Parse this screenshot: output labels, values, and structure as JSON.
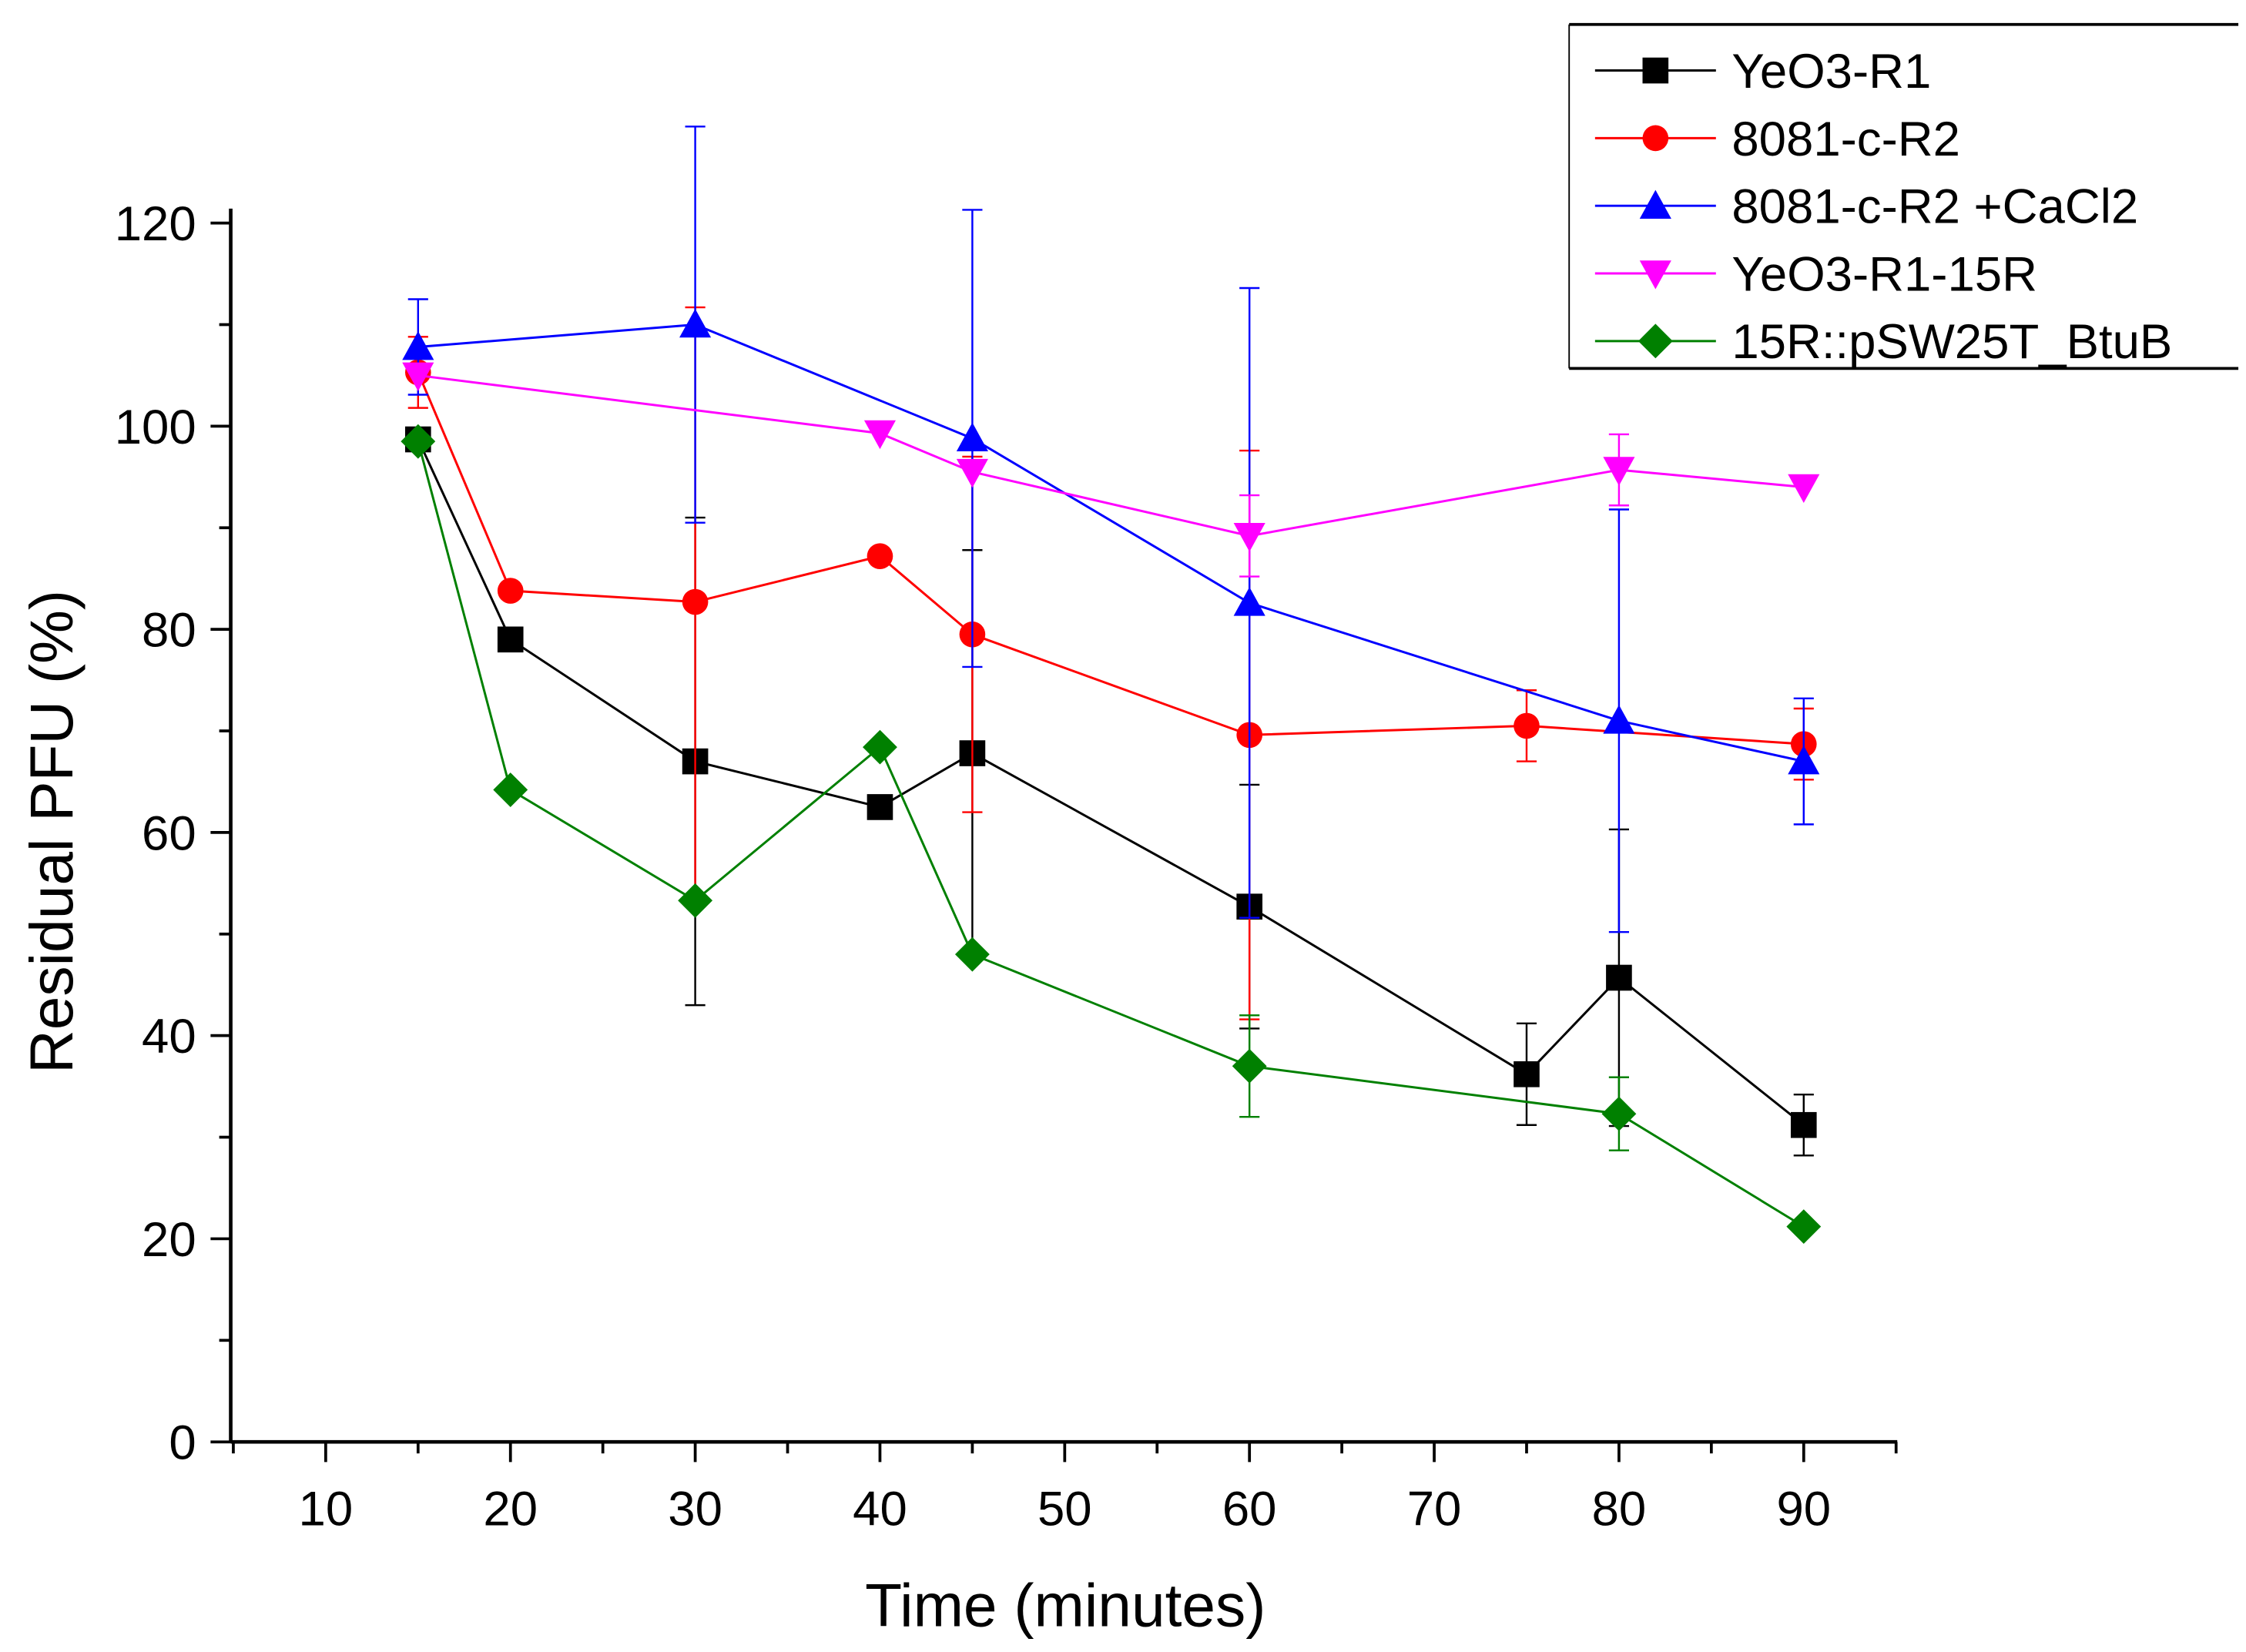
{
  "chart_data": {
    "type": "line",
    "title": "",
    "xlabel": "Time (minutes)",
    "ylabel": "Residual PFU (%)",
    "xlim": [
      5,
      95
    ],
    "ylim": [
      0,
      120
    ],
    "xticks": [
      10,
      20,
      30,
      40,
      50,
      60,
      70,
      80,
      90
    ],
    "yticks": [
      0,
      20,
      40,
      60,
      80,
      100,
      120
    ],
    "grid": false,
    "legend_position": "top-right",
    "series": [
      {
        "name": "YeO3-R1",
        "color": "#000000",
        "marker": "square",
        "x": [
          15,
          20,
          30,
          40,
          45,
          60,
          75,
          80,
          90
        ],
        "y": [
          98.7,
          79,
          67,
          62.5,
          67.8,
          52.7,
          36.2,
          45.7,
          31.2
        ],
        "err": [
          0,
          0,
          24,
          0,
          20,
          12,
          5,
          14.6,
          3
        ]
      },
      {
        "name": "8081-c-R2",
        "color": "#ff0000",
        "marker": "circle",
        "x": [
          15,
          20,
          30,
          40,
          45,
          60,
          75,
          90
        ],
        "y": [
          105.3,
          83.8,
          82.7,
          87.2,
          79.5,
          69.6,
          70.5,
          68.7
        ],
        "err": [
          3.5,
          0,
          29,
          0,
          17.5,
          28,
          3.5,
          3.5
        ]
      },
      {
        "name": "8081-c-R2 +CaCl2",
        "color": "#0000ff",
        "marker": "triangle-up",
        "x": [
          15,
          30,
          45,
          60,
          80,
          90
        ],
        "y": [
          107.8,
          110,
          98.8,
          82.6,
          71,
          67
        ],
        "err": [
          4.7,
          19.5,
          22.5,
          31,
          20.8,
          6.2
        ]
      },
      {
        "name": "YeO3-R1-15R",
        "color": "#ff00ff",
        "marker": "triangle-down",
        "x": [
          15,
          40,
          45,
          60,
          80,
          90
        ],
        "y": [
          105,
          99.3,
          95.5,
          89.2,
          95.7,
          94
        ],
        "err": [
          0,
          0,
          0,
          4,
          3.5,
          0
        ]
      },
      {
        "name": "15R::pSW25T_BtuB",
        "color": "#008000",
        "marker": "diamond",
        "x": [
          15,
          20,
          30,
          40,
          45,
          60,
          80,
          90
        ],
        "y": [
          98.5,
          64.2,
          53.3,
          68.4,
          48,
          37,
          32.3,
          21.2
        ],
        "err": [
          0,
          0,
          0,
          0,
          0,
          5,
          3.6,
          0
        ]
      }
    ]
  }
}
